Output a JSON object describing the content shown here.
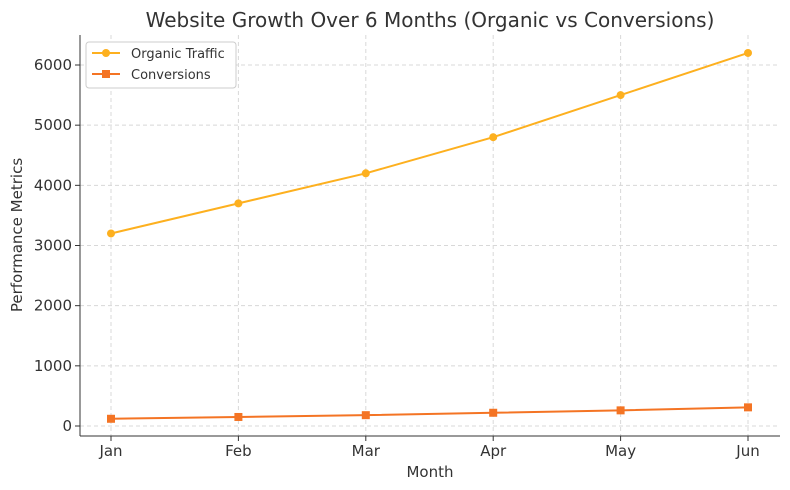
{
  "chart_data": {
    "type": "line",
    "title": "Website Growth Over 6 Months (Organic vs Conversions)",
    "xlabel": "Month",
    "ylabel": "Performance Metrics",
    "categories": [
      "Jan",
      "Feb",
      "Mar",
      "Apr",
      "May",
      "Jun"
    ],
    "yticks": [
      0,
      1000,
      2000,
      3000,
      4000,
      5000,
      6000
    ],
    "ylim": [
      -170,
      6500
    ],
    "grid": true,
    "legend_position": "top-left",
    "series": [
      {
        "name": "Organic Traffic",
        "values": [
          3200,
          3700,
          4200,
          4800,
          5500,
          6200
        ],
        "color": "#FDB01F",
        "marker": "circle"
      },
      {
        "name": "Conversions",
        "values": [
          120,
          150,
          180,
          220,
          260,
          310
        ],
        "color": "#F47424",
        "marker": "square"
      }
    ]
  }
}
